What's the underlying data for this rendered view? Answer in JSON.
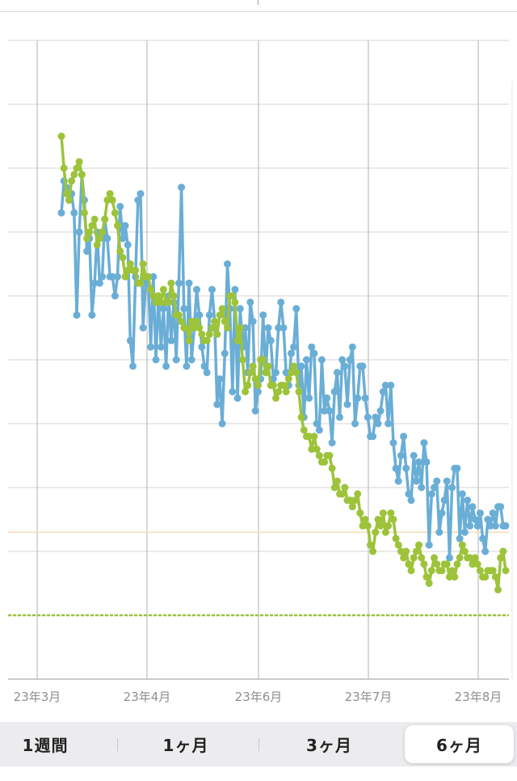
{
  "chart_data": {
    "type": "line",
    "x_ticks": [
      "23年3月",
      "23年4月",
      "23年6月",
      "23年7月",
      "23年8月"
    ],
    "ylim": [
      0,
      100
    ],
    "grid": true,
    "reference_lines": [
      {
        "style": "solid",
        "color": "#f3dcb8",
        "value": 23
      },
      {
        "style": "dashed",
        "color": "#9dc33a",
        "value": 10
      }
    ],
    "series": [
      {
        "color": "#6aaed6",
        "values": [
          73,
          78,
          77,
          75,
          76,
          73,
          57,
          70,
          79,
          75,
          67,
          69,
          57,
          62,
          70,
          62,
          63,
          72,
          69,
          63,
          63,
          60,
          63,
          74,
          69,
          71,
          68,
          53,
          49,
          63,
          75,
          76,
          55,
          62,
          63,
          52,
          63,
          50,
          60,
          52,
          58,
          49,
          60,
          53,
          59,
          50,
          62,
          77,
          58,
          49,
          62,
          50,
          55,
          61,
          57,
          52,
          49,
          48,
          57,
          61,
          56,
          43,
          47,
          40,
          51,
          65,
          58,
          45,
          61,
          44,
          58,
          52,
          55,
          48,
          59,
          56,
          42,
          45,
          47,
          57,
          48,
          55,
          53,
          47,
          48,
          55,
          59,
          55,
          48,
          46,
          51,
          52,
          58,
          46,
          49,
          41,
          50,
          44,
          52,
          51,
          40,
          39,
          50,
          42,
          44,
          42,
          37,
          45,
          48,
          41,
          50,
          49,
          43,
          50,
          52,
          40,
          44,
          49,
          49,
          44,
          41,
          38,
          38,
          41,
          40,
          42,
          45,
          46,
          40,
          46,
          37,
          33,
          31,
          35,
          38,
          33,
          29,
          28,
          35,
          31,
          34,
          30,
          37,
          34,
          21,
          29,
          30,
          31,
          23,
          26,
          28,
          31,
          19,
          30,
          33,
          33,
          22,
          29,
          23,
          28,
          24,
          27,
          25,
          24,
          26,
          22,
          20,
          25,
          24,
          26,
          24,
          27,
          27,
          24,
          24
        ],
        "markers": true
      },
      {
        "color": "#9dc33a",
        "values": [
          85,
          80,
          76,
          75,
          78,
          79,
          80,
          81,
          79,
          73,
          69,
          70,
          71,
          72,
          68,
          69,
          70,
          72,
          75,
          76,
          75,
          73,
          71,
          67,
          66,
          63,
          64,
          65,
          64,
          64,
          62,
          62,
          65,
          63,
          63,
          61,
          60,
          59,
          60,
          59,
          61,
          59,
          59,
          62,
          60,
          57,
          57,
          56,
          55,
          55,
          53,
          56,
          55,
          56,
          55,
          54,
          53,
          53,
          54,
          55,
          56,
          54,
          57,
          58,
          56,
          55,
          60,
          60,
          59,
          53,
          55,
          50,
          45,
          46,
          48,
          49,
          47,
          46,
          50,
          50,
          48,
          49,
          46,
          46,
          44,
          45,
          46,
          46,
          45,
          47,
          48,
          49,
          48,
          45,
          41,
          39,
          38,
          38,
          36,
          38,
          36,
          35,
          34,
          34,
          35,
          35,
          33,
          30,
          31,
          29,
          29,
          30,
          28,
          28,
          27,
          28,
          29,
          26,
          24,
          25,
          24,
          21,
          20,
          23,
          25,
          24,
          26,
          23,
          24,
          26,
          25,
          22,
          21,
          20,
          19,
          20,
          18,
          17,
          19,
          20,
          21,
          19,
          18,
          16,
          15,
          17,
          19,
          18,
          17,
          17,
          18,
          18,
          16,
          17,
          16,
          18,
          19,
          21,
          20,
          19,
          19,
          18,
          19,
          18,
          17,
          16,
          16,
          17,
          17,
          17,
          16,
          14,
          19,
          20,
          17
        ],
        "markers": true
      }
    ]
  },
  "range_selector": {
    "options": [
      "1週間",
      "1ヶ月",
      "3ヶ月",
      "6ヶ月"
    ],
    "selected": "6ヶ月"
  }
}
